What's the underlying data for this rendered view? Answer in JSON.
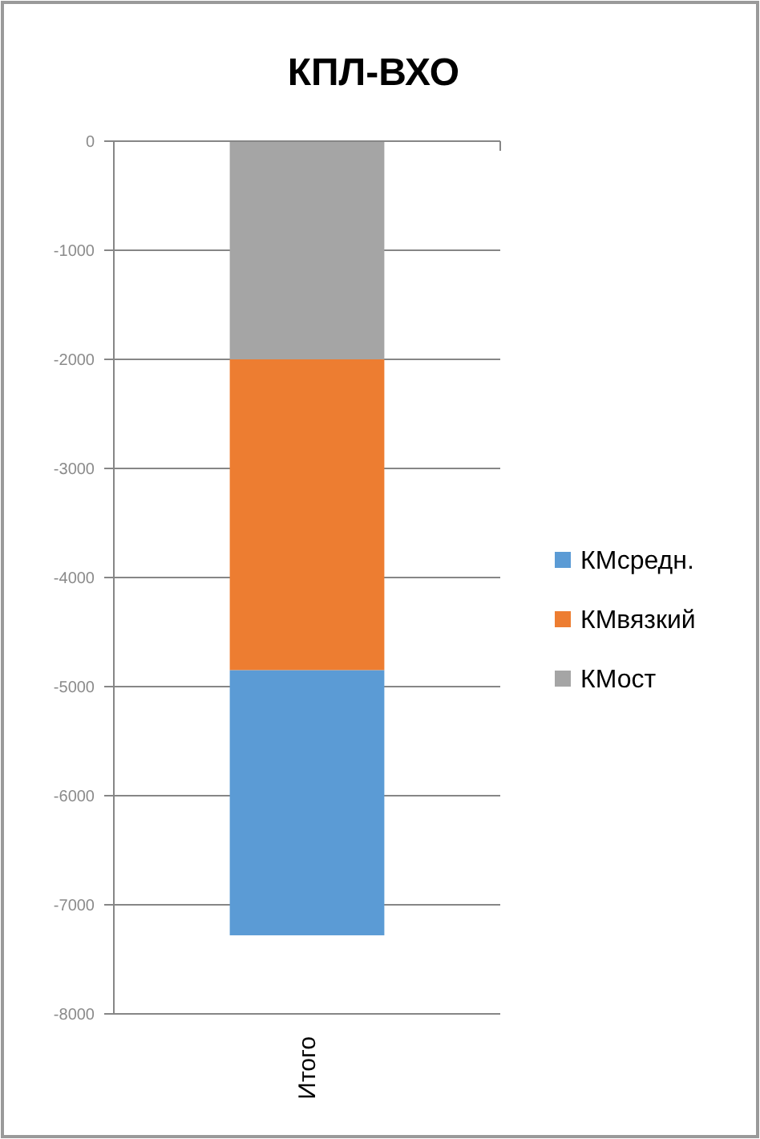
{
  "chart_data": {
    "type": "bar",
    "title": "КПЛ-ВХО",
    "stacked": true,
    "categories": [
      "Итого"
    ],
    "series": [
      {
        "name": "КМост",
        "color": "#a5a5a5",
        "values": [
          -2000
        ]
      },
      {
        "name": "КМвязкий",
        "color": "#ed7d31",
        "values": [
          -2850
        ]
      },
      {
        "name": "КМсредн.",
        "color": "#5b9bd5",
        "values": [
          -2430
        ]
      }
    ],
    "ylim": [
      -8000,
      0
    ],
    "yticks": [
      -8000,
      -7000,
      -6000,
      -5000,
      -4000,
      -3000,
      -2000,
      -1000,
      0
    ],
    "grid": "y",
    "legend": "right"
  }
}
